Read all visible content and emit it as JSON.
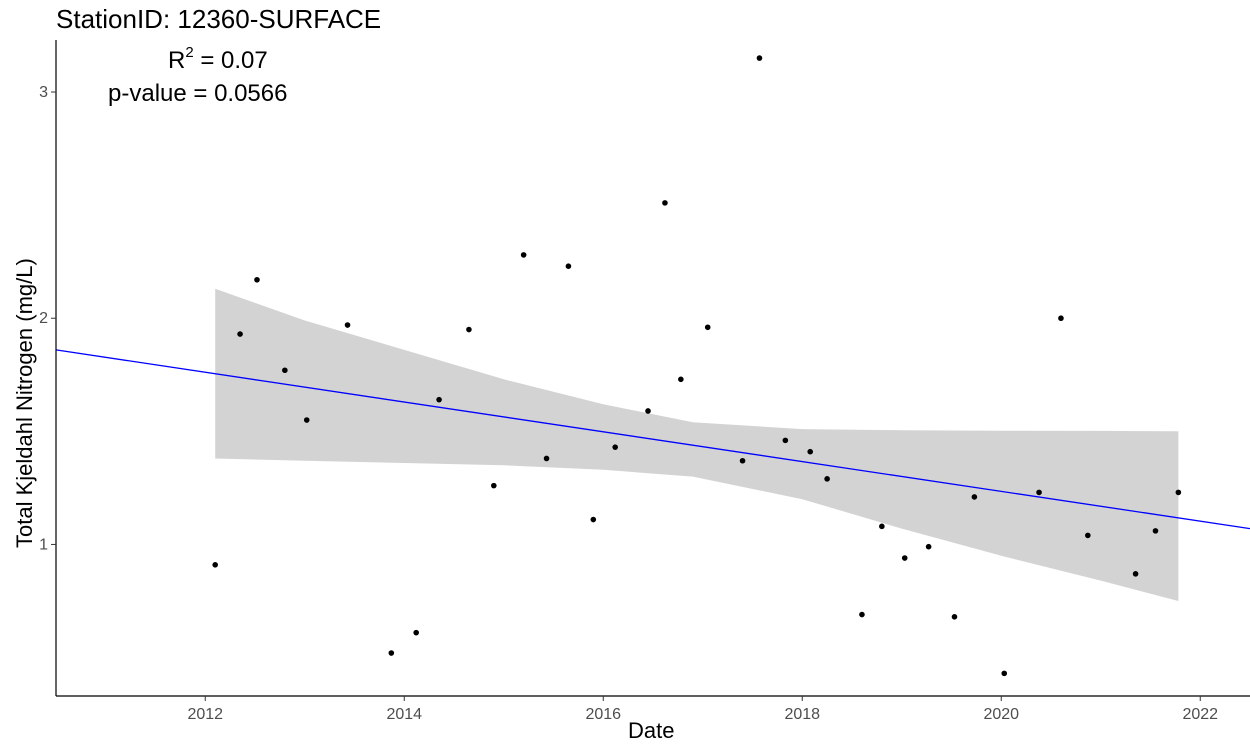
{
  "title": "StationID: 12360-SURFACE",
  "stats": {
    "r2_prefix": "R",
    "r2_sup": "2",
    "r2_value": " = 0.07",
    "p_value": "p-value = 0.0566"
  },
  "chart_data": {
    "type": "scatter",
    "title": "StationID: 12360-SURFACE",
    "xlabel": "Date",
    "ylabel": "Total Kjeldahl Nitrogen (mg/L)",
    "xlim": [
      2010.5,
      2022.5
    ],
    "ylim": [
      0.33,
      3.23
    ],
    "x_ticks": [
      2012,
      2014,
      2016,
      2018,
      2020,
      2022
    ],
    "x_tick_labels": [
      "2012",
      "2014",
      "2016",
      "2018",
      "2020",
      "2022"
    ],
    "y_ticks": [
      1,
      2,
      3
    ],
    "y_tick_labels": [
      "1",
      "2",
      "3"
    ],
    "grid": false,
    "colors": {
      "points": "#000000",
      "trend_line": "#0000ff",
      "confidence_band": "#d3d3d3"
    },
    "points": [
      {
        "x": 2012.1,
        "y": 0.91
      },
      {
        "x": 2012.35,
        "y": 1.93
      },
      {
        "x": 2012.52,
        "y": 2.17
      },
      {
        "x": 2012.8,
        "y": 1.77
      },
      {
        "x": 2013.02,
        "y": 1.55
      },
      {
        "x": 2013.43,
        "y": 1.97
      },
      {
        "x": 2013.87,
        "y": 0.52
      },
      {
        "x": 2014.12,
        "y": 0.61
      },
      {
        "x": 2014.35,
        "y": 1.64
      },
      {
        "x": 2014.65,
        "y": 1.95
      },
      {
        "x": 2014.9,
        "y": 1.26
      },
      {
        "x": 2015.2,
        "y": 2.28
      },
      {
        "x": 2015.43,
        "y": 1.38
      },
      {
        "x": 2015.65,
        "y": 2.23
      },
      {
        "x": 2015.9,
        "y": 1.11
      },
      {
        "x": 2016.12,
        "y": 1.43
      },
      {
        "x": 2016.45,
        "y": 1.59
      },
      {
        "x": 2016.62,
        "y": 2.51
      },
      {
        "x": 2016.78,
        "y": 1.73
      },
      {
        "x": 2017.05,
        "y": 1.96
      },
      {
        "x": 2017.4,
        "y": 1.37
      },
      {
        "x": 2017.57,
        "y": 3.15
      },
      {
        "x": 2017.83,
        "y": 1.46
      },
      {
        "x": 2018.08,
        "y": 1.41
      },
      {
        "x": 2018.25,
        "y": 1.29
      },
      {
        "x": 2018.6,
        "y": 0.69
      },
      {
        "x": 2018.8,
        "y": 1.08
      },
      {
        "x": 2019.03,
        "y": 0.94
      },
      {
        "x": 2019.27,
        "y": 0.99
      },
      {
        "x": 2019.53,
        "y": 0.68
      },
      {
        "x": 2019.73,
        "y": 1.21
      },
      {
        "x": 2020.03,
        "y": 0.43
      },
      {
        "x": 2020.38,
        "y": 1.23
      },
      {
        "x": 2020.6,
        "y": 2.0
      },
      {
        "x": 2020.87,
        "y": 1.04
      },
      {
        "x": 2021.35,
        "y": 0.87
      },
      {
        "x": 2021.55,
        "y": 1.06
      },
      {
        "x": 2021.78,
        "y": 1.23
      }
    ],
    "trend_line": {
      "x": [
        2010.5,
        2022.5
      ],
      "y": [
        1.86,
        1.07
      ]
    },
    "confidence_band": {
      "x": [
        2012.1,
        2013.0,
        2014.0,
        2015.0,
        2016.0,
        2016.9,
        2018.0,
        2019.0,
        2020.0,
        2021.0,
        2021.78
      ],
      "upper": [
        2.13,
        1.99,
        1.86,
        1.73,
        1.62,
        1.54,
        1.51,
        1.505,
        1.503,
        1.502,
        1.5
      ],
      "lower": [
        1.38,
        1.37,
        1.36,
        1.35,
        1.33,
        1.3,
        1.2,
        1.07,
        0.95,
        0.84,
        0.75
      ]
    }
  }
}
